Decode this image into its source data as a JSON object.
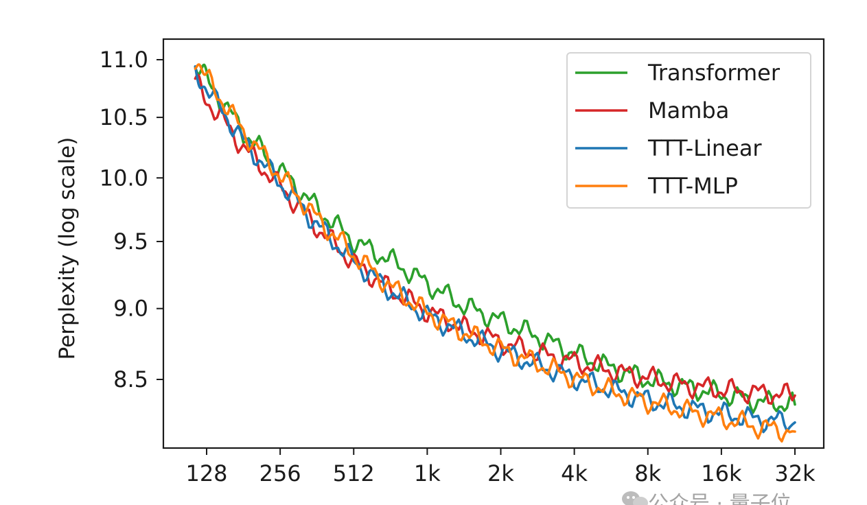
{
  "chart_data": {
    "type": "line",
    "ylabel": "Perplexity (log scale)",
    "xlabel": "",
    "x_scale": "log2",
    "y_scale": "log",
    "xlim": [
      100,
      40000
    ],
    "ylim": [
      8.05,
      11.15
    ],
    "x_ticks": [
      {
        "value": 128,
        "label": "128"
      },
      {
        "value": 256,
        "label": "256"
      },
      {
        "value": 512,
        "label": "512"
      },
      {
        "value": 1024,
        "label": "1k"
      },
      {
        "value": 2048,
        "label": "2k"
      },
      {
        "value": 4096,
        "label": "4k"
      },
      {
        "value": 8192,
        "label": "8k"
      },
      {
        "value": 16384,
        "label": "16k"
      },
      {
        "value": 32768,
        "label": "32k"
      }
    ],
    "y_ticks": [
      {
        "value": 8.5,
        "label": "8.5"
      },
      {
        "value": 9.0,
        "label": "9.0"
      },
      {
        "value": 9.5,
        "label": "9.5"
      },
      {
        "value": 10.0,
        "label": "10.0"
      },
      {
        "value": 10.5,
        "label": "10.5"
      },
      {
        "value": 11.0,
        "label": "11.0"
      }
    ],
    "legend_position": "top-right",
    "grid": false,
    "x": [
      115,
      128,
      181,
      256,
      362,
      512,
      724,
      1024,
      1448,
      2048,
      2896,
      4096,
      5793,
      8192,
      11585,
      16384,
      23170,
      32768
    ],
    "series": [
      {
        "name": "Transformer",
        "color": "#2ca02c",
        "values": [
          10.97,
          10.82,
          10.38,
          10.06,
          9.76,
          9.5,
          9.36,
          9.18,
          9.02,
          8.91,
          8.8,
          8.68,
          8.58,
          8.5,
          8.45,
          8.4,
          8.35,
          8.33
        ]
      },
      {
        "name": "Mamba",
        "color": "#d62728",
        "values": [
          10.8,
          10.65,
          10.25,
          9.93,
          9.61,
          9.34,
          9.14,
          8.98,
          8.86,
          8.76,
          8.68,
          8.62,
          8.56,
          8.51,
          8.46,
          8.43,
          8.41,
          8.39
        ]
      },
      {
        "name": "TTT-Linear",
        "color": "#1f77b4",
        "values": [
          10.9,
          10.75,
          10.3,
          9.96,
          9.63,
          9.35,
          9.13,
          8.95,
          8.82,
          8.7,
          8.6,
          8.51,
          8.43,
          8.36,
          8.31,
          8.27,
          8.23,
          8.21
        ]
      },
      {
        "name": "TTT-MLP",
        "color": "#ff7f0e",
        "values": [
          11.01,
          10.84,
          10.38,
          10.02,
          9.68,
          9.4,
          9.16,
          8.97,
          8.83,
          8.71,
          8.61,
          8.51,
          8.42,
          8.35,
          8.29,
          8.24,
          8.18,
          8.15
        ]
      }
    ]
  },
  "watermark": {
    "text": "公众号 · 量子位",
    "icon": "wechat-icon"
  }
}
